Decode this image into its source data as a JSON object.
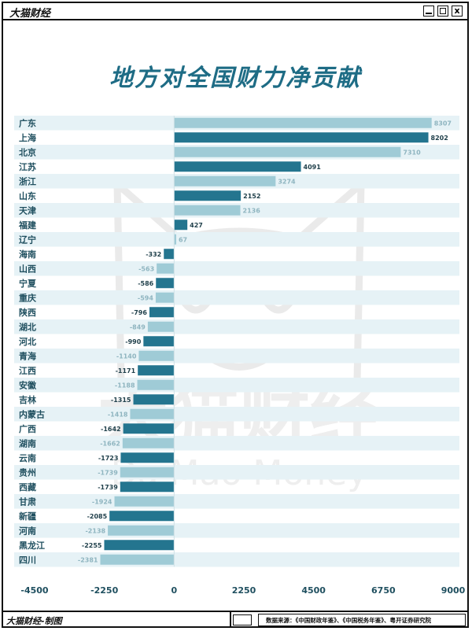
{
  "window": {
    "title": "大猫财经",
    "min_label": "",
    "max_label": "",
    "close_label": "x"
  },
  "chart_title": "地方对全国财力净贡献",
  "footer": {
    "left": "大猫财经-制图",
    "source": "数据来源：《中国财政年鉴》、《中国税务年鉴》、粤开证券研究院"
  },
  "watermark": {
    "line1": "大猫财经",
    "line2": "Da Mao Money"
  },
  "colors": {
    "dark": "#24758f",
    "light": "#9fcbd6",
    "stripe": "#e6f2f6",
    "title": "#1e6c85"
  },
  "chart_data": {
    "type": "bar",
    "orientation": "horizontal",
    "title": "地方对全国财力净贡献",
    "xlim": [
      -4500,
      9000
    ],
    "xticks": [
      "-4500",
      "-2250",
      "0",
      "2250",
      "4500",
      "6750",
      "9000"
    ],
    "xtick_values": [
      -4500,
      -2250,
      0,
      2250,
      4500,
      6750,
      9000
    ],
    "categories": [
      "广东",
      "上海",
      "北京",
      "江苏",
      "浙江",
      "山东",
      "天津",
      "福建",
      "辽宁",
      "海南",
      "山西",
      "宁夏",
      "重庆",
      "陕西",
      "湖北",
      "河北",
      "青海",
      "江西",
      "安徽",
      "吉林",
      "内蒙古",
      "广西",
      "湖南",
      "云南",
      "贵州",
      "西藏",
      "甘肃",
      "新疆",
      "河南",
      "黑龙江",
      "四川"
    ],
    "values": [
      8307,
      8202,
      7310,
      4091,
      3274,
      2152,
      2136,
      427,
      67,
      -332,
      -563,
      -586,
      -594,
      -796,
      -849,
      -990,
      -1140,
      -1171,
      -1188,
      -1315,
      -1418,
      -1642,
      -1662,
      -1723,
      -1739,
      -1739,
      -1924,
      -2085,
      -2138,
      -2255,
      -2381
    ],
    "value_labels": [
      "8307",
      "8202",
      "7310",
      "4091",
      "3274",
      "2152",
      "2136",
      "427",
      "67",
      "-332",
      "-563",
      "-586",
      "-594",
      "-796",
      "-849",
      "-990",
      "-1140",
      "-1171",
      "-1188",
      "-1315",
      "-1418",
      "-1642",
      "-1662",
      "-1723",
      "-1739",
      "-1739",
      "-1924",
      "-2085",
      "-2138",
      "-2255",
      "-2381"
    ],
    "grid": false,
    "legend": "none"
  }
}
